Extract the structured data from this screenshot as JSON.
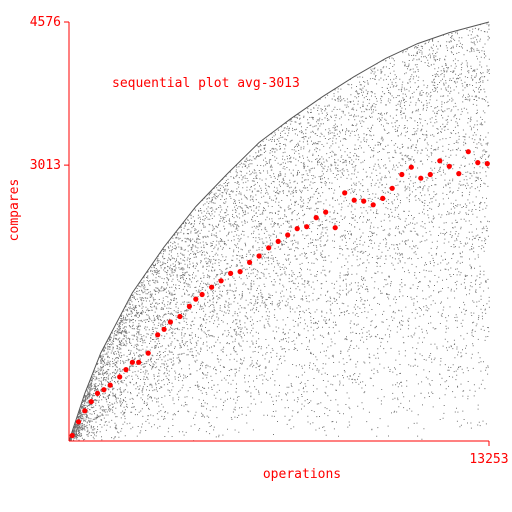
{
  "chart_data": {
    "type": "scatter",
    "title": "sequential plot avg-3013",
    "xlabel": "operations",
    "ylabel": "compares",
    "xlim": [
      0,
      13253
    ],
    "ylim": [
      0,
      4576
    ],
    "x_tick_labels": [
      "13253"
    ],
    "y_tick_labels": [
      "4576",
      "3013"
    ],
    "y_tick_values": [
      4576,
      3013
    ],
    "x_tick_values": [
      13253
    ],
    "grid": false,
    "colors": {
      "accent": "#ff0000",
      "background_points": "#000000",
      "axis": "#ff0000",
      "envelope": "#555555"
    },
    "envelope": {
      "x": [
        0,
        500,
        1000,
        2000,
        3000,
        4000,
        5000,
        6000,
        7000,
        8000,
        9000,
        10000,
        11000,
        12000,
        13253
      ],
      "y": [
        0,
        520,
        960,
        1620,
        2120,
        2560,
        2920,
        3260,
        3520,
        3760,
        3980,
        4180,
        4340,
        4460,
        4576
      ]
    },
    "series": [
      {
        "x": [
          100,
          300,
          500,
          700,
          900,
          1100,
          1300,
          1600,
          1800,
          2000,
          2200,
          2500,
          2800,
          3000,
          3200,
          3500,
          3800,
          4000,
          4200,
          4500,
          4800,
          5100,
          5400,
          5700,
          6000,
          6300,
          6600,
          6900,
          7200,
          7500,
          7800,
          8100,
          8400,
          8700,
          9000,
          9300,
          9600,
          9900,
          10200,
          10500,
          10800,
          11100,
          11400,
          11700,
          12000,
          12300,
          12600,
          12900,
          13200
        ],
        "y": [
          60,
          210,
          330,
          430,
          520,
          560,
          610,
          700,
          780,
          860,
          860,
          960,
          1160,
          1220,
          1300,
          1360,
          1470,
          1550,
          1600,
          1680,
          1750,
          1830,
          1850,
          1950,
          2020,
          2110,
          2180,
          2250,
          2320,
          2340,
          2440,
          2500,
          2330,
          2710,
          2630,
          2620,
          2580,
          2650,
          2760,
          2910,
          2990,
          2870,
          2910,
          3060,
          3000,
          2920,
          3160,
          3040,
          3030
        ]
      }
    ]
  }
}
